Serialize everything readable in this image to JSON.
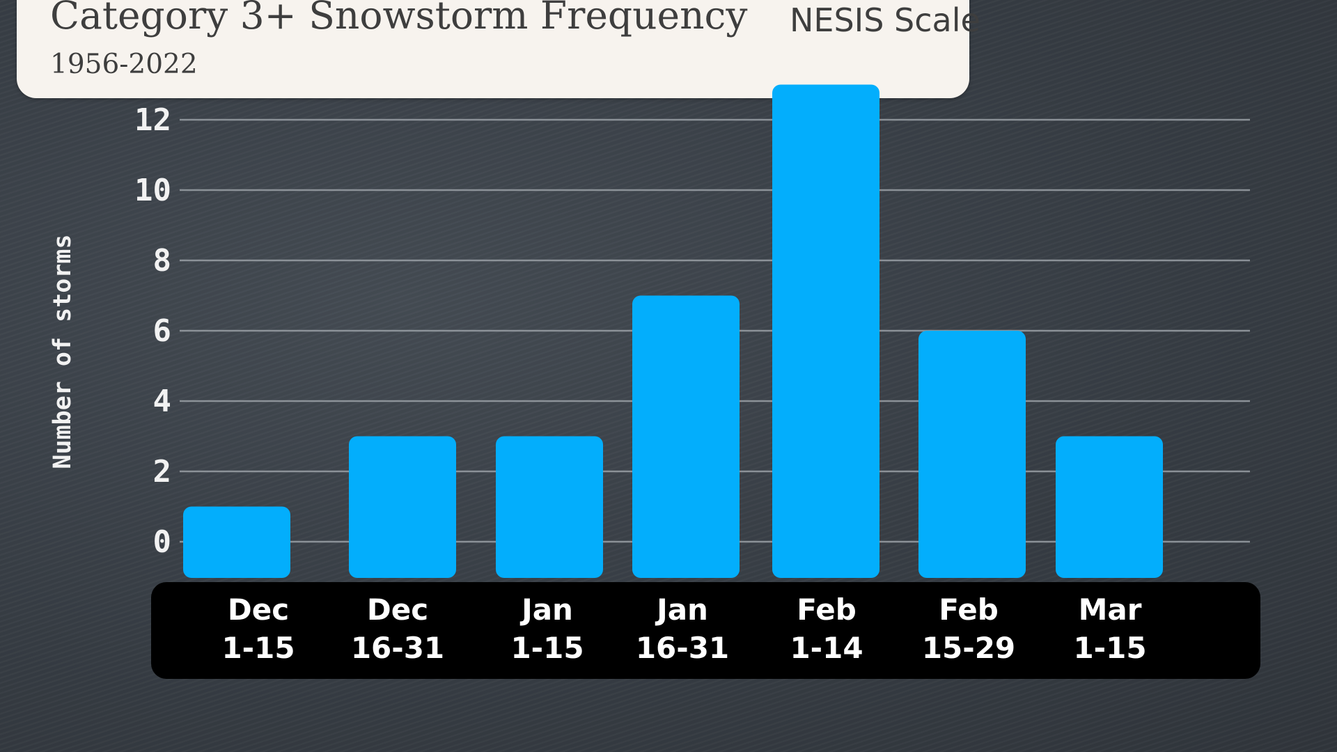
{
  "chart_data": {
    "type": "bar",
    "title": "Category 3+ Snowstorm Frequency",
    "subtitle": "1956-2022",
    "scale_label": "NESIS Scale",
    "ylabel": "Number of storms",
    "xlabel": "",
    "yticks": [
      "0",
      "2",
      "4",
      "6",
      "8",
      "10",
      "12"
    ],
    "ylim": [
      0,
      12
    ],
    "grid": true,
    "legend": "none",
    "categories": [
      {
        "line1": "Dec",
        "line2": "1-15"
      },
      {
        "line1": "Dec",
        "line2": "16-31"
      },
      {
        "line1": "Jan",
        "line2": "1-15"
      },
      {
        "line1": "Jan",
        "line2": "16-31"
      },
      {
        "line1": "Feb",
        "line2": "1-14"
      },
      {
        "line1": "Feb",
        "line2": "15-29"
      },
      {
        "line1": "Mar",
        "line2": "1-15"
      }
    ],
    "values": [
      1,
      3,
      3,
      7,
      13,
      6,
      3
    ],
    "colors": {
      "bar": "#03aefc",
      "grid": "#9aa0a6",
      "tick_text": "#f2f2f2",
      "category_band": "#000000"
    }
  }
}
